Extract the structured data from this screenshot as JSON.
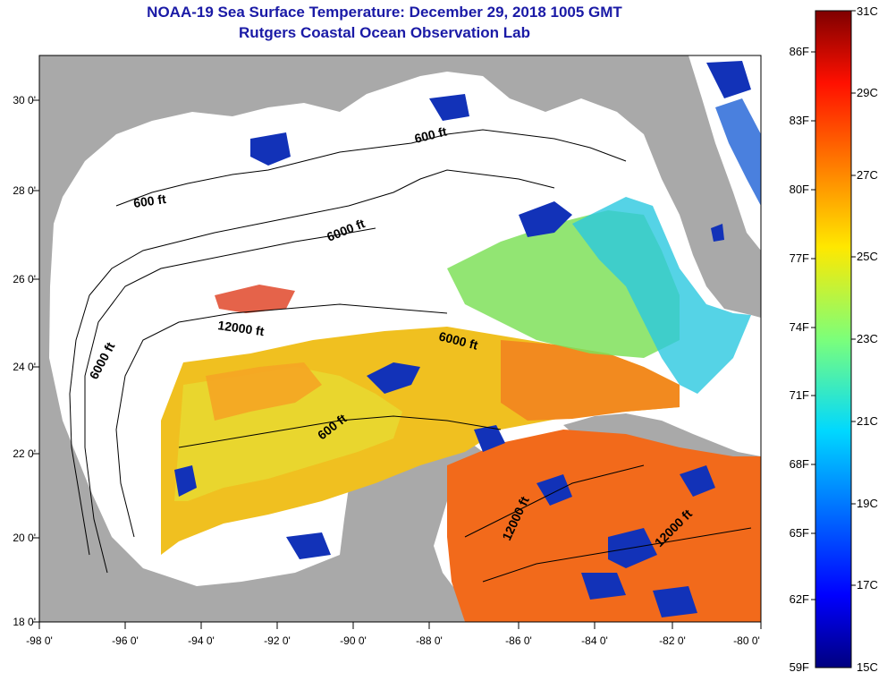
{
  "header": {
    "title": "NOAA-19 Sea Surface Temperature:  December 29, 2018 1005 GMT",
    "subtitle": "Rutgers Coastal Ocean Observation Lab"
  },
  "map": {
    "lat_labels": [
      "30 0'",
      "28 0'",
      "26 0'",
      "24 0'",
      "22 0'",
      "20 0'",
      "18 0'"
    ],
    "lon_labels": [
      "-98 0'",
      "-96 0'",
      "-94 0'",
      "-92 0'",
      "-90 0'",
      "-88 0'",
      "-86 0'",
      "-84 0'",
      "-82 0'",
      "-80 0'"
    ],
    "contour_labels": {
      "c600_north": "600 ft",
      "c600_west": "600 ft",
      "c6000_north": "6000 ft",
      "c12000_gulf": "12000 ft",
      "c6000_east": "6000 ft",
      "c6000_west": "6000 ft",
      "c600_mid": "600 ft",
      "c12000_yuc": "12000 ft",
      "c12000_carib": "12000 ft"
    }
  },
  "colorbar": {
    "fahrenheit_labels": [
      "86F",
      "83F",
      "80F",
      "77F",
      "74F",
      "71F",
      "68F",
      "65F",
      "62F",
      "59F"
    ],
    "celsius_labels": [
      "31C",
      "29C",
      "27C",
      "25C",
      "23C",
      "21C",
      "19C",
      "17C",
      "15C"
    ]
  },
  "colors": {
    "land": "#a9a9a9",
    "no_data": "#ffffff",
    "title": "#1a1aa6",
    "warm": "#f26a1b",
    "mid": "#f0c020",
    "cool": "#1232b8"
  }
}
